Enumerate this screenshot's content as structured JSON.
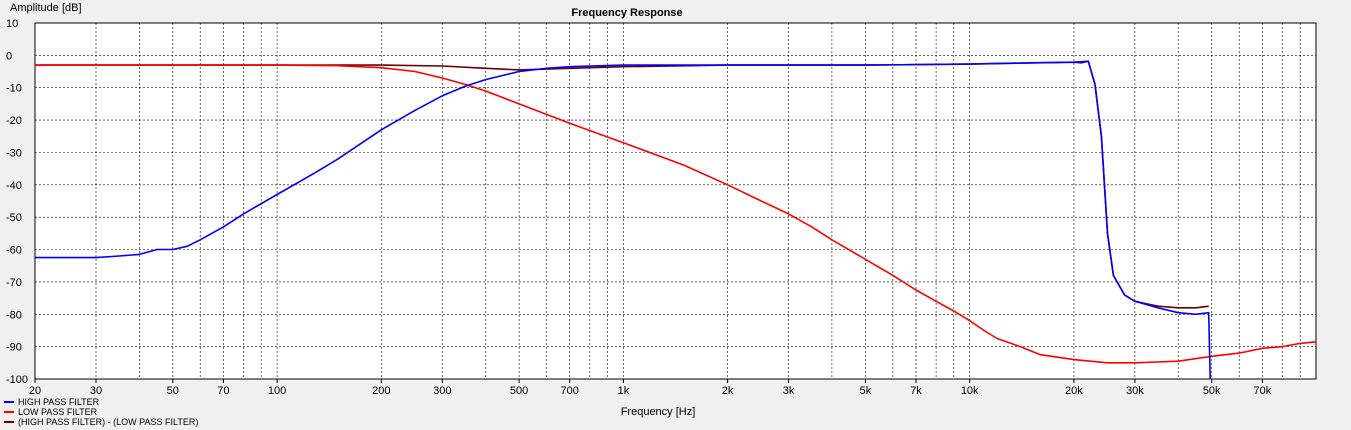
{
  "chart_data": {
    "type": "line",
    "title": "Frequency Response",
    "xlabel": "Frequency [Hz]",
    "ylabel": "Amplitude [dB]",
    "x_scale": "log",
    "xlim": [
      20,
      100000
    ],
    "ylim": [
      -100,
      10
    ],
    "grid": true,
    "legend_position": "bottom-left",
    "x_ticks": [
      {
        "value": 20,
        "label": "20"
      },
      {
        "value": 30,
        "label": "30"
      },
      {
        "value": 50,
        "label": "50"
      },
      {
        "value": 70,
        "label": "70"
      },
      {
        "value": 100,
        "label": "100"
      },
      {
        "value": 200,
        "label": "200"
      },
      {
        "value": 300,
        "label": "300"
      },
      {
        "value": 500,
        "label": "500"
      },
      {
        "value": 700,
        "label": "700"
      },
      {
        "value": 1000,
        "label": "1k"
      },
      {
        "value": 2000,
        "label": "2k"
      },
      {
        "value": 3000,
        "label": "3k"
      },
      {
        "value": 5000,
        "label": "5k"
      },
      {
        "value": 7000,
        "label": "7k"
      },
      {
        "value": 10000,
        "label": "10k"
      },
      {
        "value": 20000,
        "label": "20k"
      },
      {
        "value": 30000,
        "label": "30k"
      },
      {
        "value": 50000,
        "label": "50k"
      },
      {
        "value": 70000,
        "label": "70k"
      }
    ],
    "y_ticks": [
      {
        "value": 10,
        "label": "10"
      },
      {
        "value": 0,
        "label": "0"
      },
      {
        "value": -10,
        "label": "-10"
      },
      {
        "value": -20,
        "label": "-20"
      },
      {
        "value": -30,
        "label": "-30"
      },
      {
        "value": -40,
        "label": "-40"
      },
      {
        "value": -50,
        "label": "-50"
      },
      {
        "value": -60,
        "label": "-60"
      },
      {
        "value": -70,
        "label": "-70"
      },
      {
        "value": -80,
        "label": "-80"
      },
      {
        "value": -90,
        "label": "-90"
      },
      {
        "value": -100,
        "label": "-100"
      }
    ],
    "series": [
      {
        "name": "HIGH PASS FILTER",
        "color": "#0000ff",
        "points": [
          [
            20,
            -62.5
          ],
          [
            25,
            -62.5
          ],
          [
            30,
            -62.5
          ],
          [
            35,
            -62
          ],
          [
            40,
            -61.5
          ],
          [
            45,
            -60
          ],
          [
            50,
            -60
          ],
          [
            55,
            -59
          ],
          [
            60,
            -57
          ],
          [
            70,
            -53
          ],
          [
            80,
            -49
          ],
          [
            100,
            -43
          ],
          [
            130,
            -36
          ],
          [
            150,
            -32
          ],
          [
            200,
            -23
          ],
          [
            250,
            -17
          ],
          [
            300,
            -12.5
          ],
          [
            350,
            -9.5
          ],
          [
            400,
            -7.5
          ],
          [
            500,
            -5
          ],
          [
            600,
            -4
          ],
          [
            700,
            -3.5
          ],
          [
            1000,
            -3
          ],
          [
            2000,
            -3
          ],
          [
            5000,
            -3
          ],
          [
            10000,
            -2.7
          ],
          [
            15000,
            -2.3
          ],
          [
            20000,
            -2.1
          ],
          [
            21000,
            -2.3
          ],
          [
            22000,
            -1.8
          ],
          [
            23000,
            -9
          ],
          [
            24000,
            -25
          ],
          [
            25000,
            -55
          ],
          [
            26000,
            -68
          ],
          [
            28000,
            -74
          ],
          [
            30000,
            -76
          ],
          [
            35000,
            -78
          ],
          [
            40000,
            -79.5
          ],
          [
            45000,
            -80
          ],
          [
            49000,
            -79.5
          ],
          [
            49500,
            -100
          ]
        ]
      },
      {
        "name": "LOW PASS FILTER",
        "color": "#ff0000",
        "points": [
          [
            20,
            -3
          ],
          [
            100,
            -3
          ],
          [
            150,
            -3.2
          ],
          [
            200,
            -3.8
          ],
          [
            250,
            -5
          ],
          [
            300,
            -7
          ],
          [
            350,
            -9
          ],
          [
            400,
            -11
          ],
          [
            500,
            -15
          ],
          [
            700,
            -21
          ],
          [
            1000,
            -27
          ],
          [
            1500,
            -34
          ],
          [
            2000,
            -40
          ],
          [
            2500,
            -45
          ],
          [
            3000,
            -49
          ],
          [
            3500,
            -53
          ],
          [
            4000,
            -57
          ],
          [
            5000,
            -63
          ],
          [
            6000,
            -68
          ],
          [
            7000,
            -72.5
          ],
          [
            8000,
            -76
          ],
          [
            9000,
            -79
          ],
          [
            10000,
            -82
          ],
          [
            11000,
            -85
          ],
          [
            12000,
            -87.5
          ],
          [
            14000,
            -90
          ],
          [
            16000,
            -92.5
          ],
          [
            20000,
            -94
          ],
          [
            25000,
            -95
          ],
          [
            30000,
            -95
          ],
          [
            40000,
            -94.5
          ],
          [
            50000,
            -93
          ],
          [
            60000,
            -92
          ],
          [
            70000,
            -90.5
          ],
          [
            80000,
            -90
          ],
          [
            90000,
            -89
          ],
          [
            100000,
            -88.5
          ]
        ]
      },
      {
        "name": "(HIGH PASS FILTER) - (LOW PASS FILTER)",
        "color": "#6b0000",
        "points": [
          [
            20,
            -3
          ],
          [
            100,
            -3
          ],
          [
            200,
            -3
          ],
          [
            300,
            -3.3
          ],
          [
            400,
            -4
          ],
          [
            500,
            -4.5
          ],
          [
            700,
            -4
          ],
          [
            1000,
            -3.5
          ],
          [
            2000,
            -3
          ],
          [
            5000,
            -3
          ],
          [
            10000,
            -2.7
          ],
          [
            20000,
            -2.1
          ],
          [
            22000,
            -1.8
          ],
          [
            23000,
            -9
          ],
          [
            24000,
            -25
          ],
          [
            25000,
            -55
          ],
          [
            26000,
            -68
          ],
          [
            28000,
            -74
          ],
          [
            30000,
            -76
          ],
          [
            35000,
            -77.5
          ],
          [
            40000,
            -78
          ],
          [
            45000,
            -78
          ],
          [
            49000,
            -77.5
          ]
        ]
      }
    ]
  }
}
